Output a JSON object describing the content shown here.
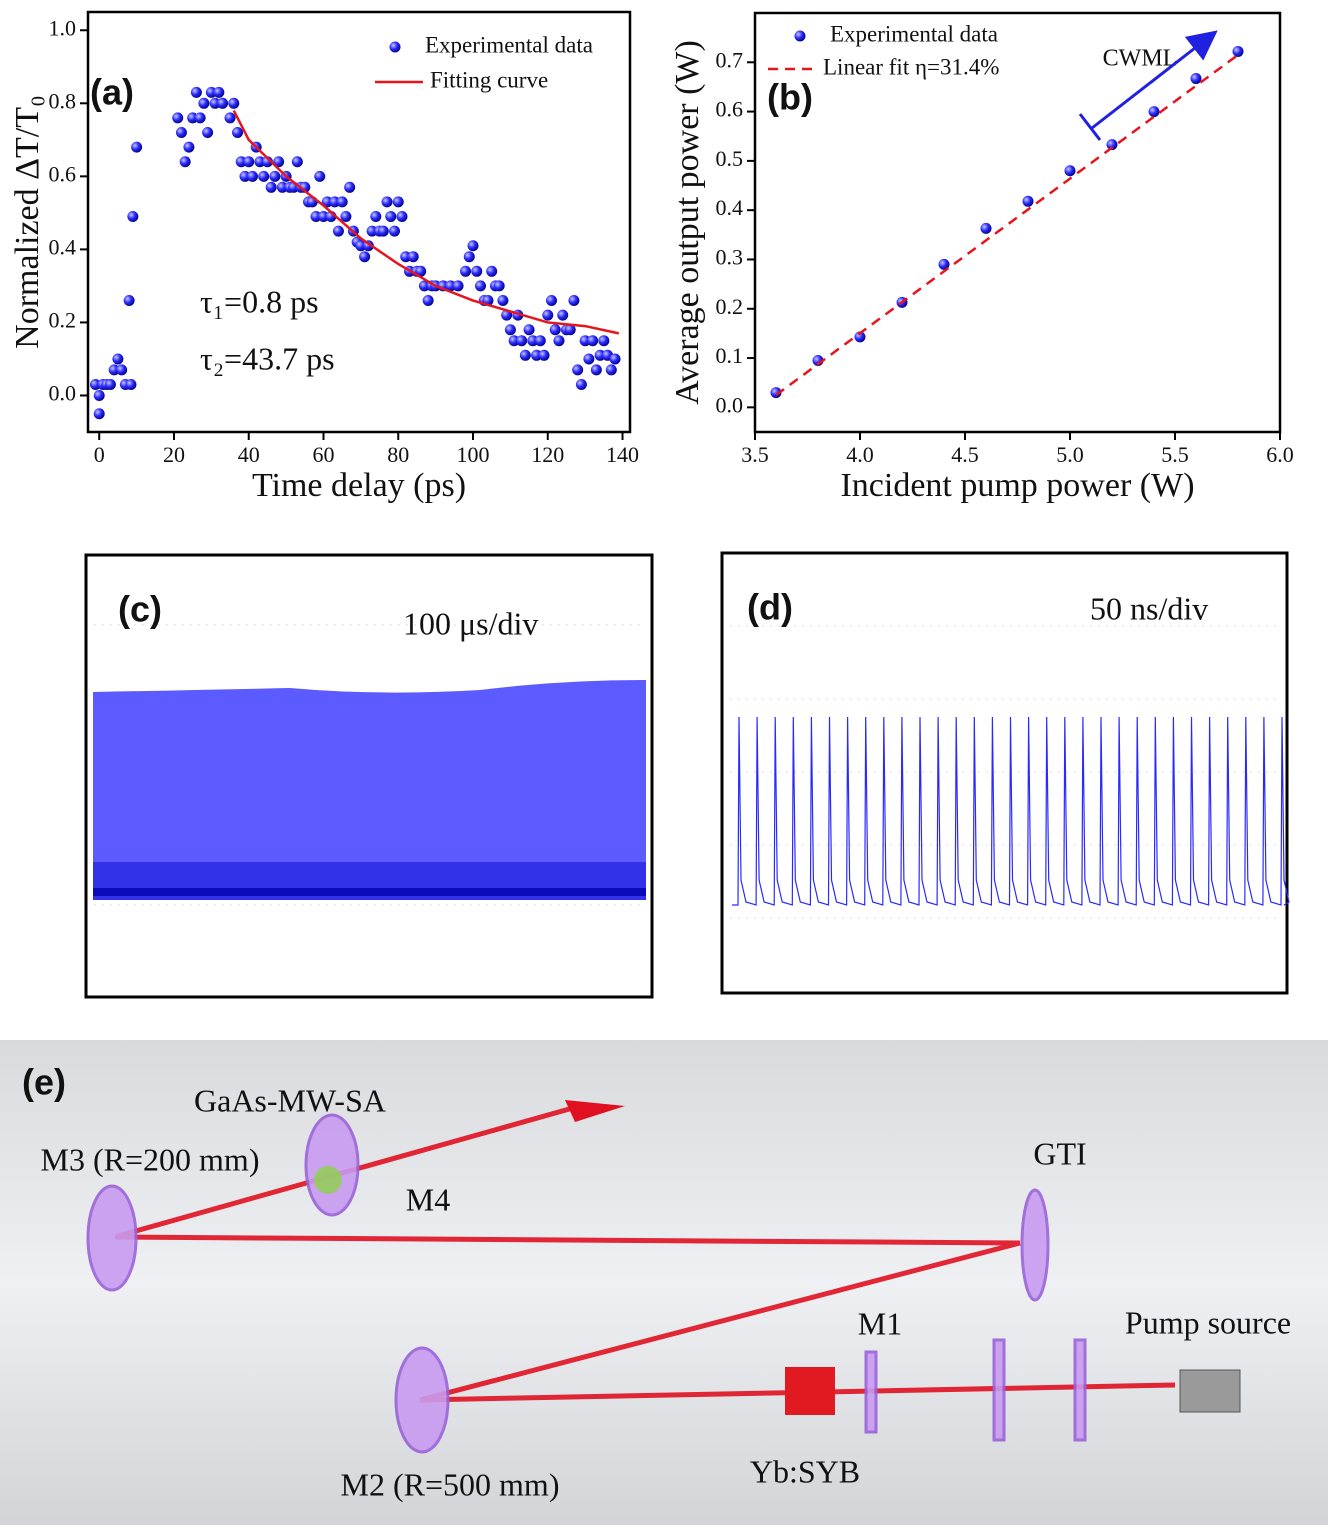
{
  "chart_data": [
    {
      "type": "scatter-fit",
      "panel_label": "(a)",
      "x_label": "Time delay (ps)",
      "y_label": "Normalized ΔT/T₀",
      "annotations": [
        "τ₁=0.8 ps",
        "τ₂=43.7 ps"
      ],
      "xlim": [
        -3,
        142
      ],
      "ylim": [
        -0.1,
        1.05
      ],
      "xticks": [
        0,
        20,
        40,
        60,
        80,
        100,
        120,
        140
      ],
      "yticks": [
        {
          "value": 0,
          "label": "0.0"
        },
        0.2,
        0.4,
        0.6,
        0.8,
        {
          "value": 1,
          "label": "1.0"
        }
      ],
      "series": [
        {
          "name": "Experimental data",
          "type": "scatter",
          "color": "#1a1aff",
          "x": [
            -1,
            0,
            0,
            1,
            2,
            3,
            4,
            5,
            6,
            7,
            8,
            8.5,
            9,
            10,
            21,
            22,
            23,
            24,
            25,
            26,
            27,
            28,
            29,
            30,
            31,
            32,
            33,
            35,
            36,
            37,
            38,
            39,
            40,
            41,
            42,
            43,
            44,
            45,
            46,
            47,
            48,
            49,
            50,
            51,
            52,
            53,
            54,
            55,
            56,
            57,
            58,
            59,
            60,
            61,
            62,
            63,
            64,
            65,
            66,
            67,
            68,
            69,
            70,
            71,
            72,
            73,
            74,
            75,
            76,
            77,
            78,
            79,
            80,
            81,
            82,
            83,
            84,
            85,
            86,
            87,
            88,
            89,
            90,
            92,
            94,
            96,
            98,
            99,
            100,
            101,
            102,
            103,
            104,
            105,
            106,
            107,
            108,
            109,
            110,
            111,
            112,
            113,
            114,
            115,
            116,
            117,
            118,
            119,
            120,
            121,
            122,
            123,
            124,
            125,
            126,
            127,
            128,
            129,
            130,
            131,
            132,
            133,
            134,
            135,
            136,
            137,
            138
          ],
          "values": [
            0.03,
            0,
            -0.05,
            0.03,
            0.03,
            0.03,
            0.07,
            0.1,
            0.07,
            0.03,
            0.26,
            0.03,
            0.49,
            0.68,
            0.76,
            0.72,
            0.64,
            0.68,
            0.76,
            0.83,
            0.76,
            0.8,
            0.72,
            0.83,
            0.8,
            0.83,
            0.8,
            0.76,
            0.8,
            0.72,
            0.64,
            0.6,
            0.64,
            0.6,
            0.68,
            0.64,
            0.6,
            0.64,
            0.57,
            0.6,
            0.64,
            0.57,
            0.6,
            0.57,
            0.57,
            0.64,
            0.57,
            0.57,
            0.53,
            0.53,
            0.49,
            0.6,
            0.49,
            0.53,
            0.49,
            0.53,
            0.45,
            0.53,
            0.49,
            0.57,
            0.45,
            0.42,
            0.41,
            0.38,
            0.41,
            0.45,
            0.49,
            0.45,
            0.45,
            0.53,
            0.49,
            0.45,
            0.53,
            0.49,
            0.38,
            0.34,
            0.38,
            0.34,
            0.34,
            0.3,
            0.26,
            0.3,
            0.3,
            0.3,
            0.3,
            0.3,
            0.34,
            0.38,
            0.41,
            0.34,
            0.3,
            0.26,
            0.26,
            0.34,
            0.3,
            0.3,
            0.26,
            0.22,
            0.18,
            0.15,
            0.22,
            0.15,
            0.11,
            0.18,
            0.15,
            0.11,
            0.15,
            0.11,
            0.22,
            0.26,
            0.18,
            0.15,
            0.22,
            0.18,
            0.18,
            0.26,
            0.07,
            0.03,
            0.15,
            0.1,
            0.15,
            0.07,
            0.11,
            0.15,
            0.11,
            0.07,
            0.1
          ]
        },
        {
          "name": "Fitting curve",
          "type": "line",
          "color": "#e8141c",
          "x": [
            36,
            40,
            50,
            60,
            70,
            80,
            90,
            100,
            110,
            120,
            130,
            139
          ],
          "values": [
            0.78,
            0.7,
            0.6,
            0.52,
            0.43,
            0.36,
            0.3,
            0.26,
            0.23,
            0.2,
            0.19,
            0.17
          ]
        }
      ]
    },
    {
      "type": "scatter-fit",
      "panel_label": "(b)",
      "x_label": "Incident pump power (W)",
      "y_label": "Average output power (W)",
      "annotations": [
        "CWML"
      ],
      "xlim": [
        3.5,
        6.0
      ],
      "ylim": [
        -0.05,
        0.8
      ],
      "xticks": [
        3.5,
        {
          "value": 4,
          "label": "4.0"
        },
        4.5,
        {
          "value": 5,
          "label": "5.0"
        },
        5.5,
        {
          "value": 6,
          "label": "6.0"
        }
      ],
      "yticks": [
        {
          "value": 0,
          "label": "0.0"
        },
        0.1,
        0.2,
        0.3,
        0.4,
        0.5,
        0.6,
        0.7
      ],
      "series": [
        {
          "name": "Experimental data",
          "type": "scatter",
          "color": "#1a1aff",
          "x": [
            3.6,
            3.8,
            4.0,
            4.2,
            4.4,
            4.6,
            4.8,
            5.0,
            5.2,
            5.4,
            5.6,
            5.8
          ],
          "values": [
            0.03,
            0.095,
            0.143,
            0.213,
            0.29,
            0.363,
            0.418,
            0.48,
            0.533,
            0.6,
            0.667,
            0.722
          ]
        },
        {
          "name": "Linear fit η=31.4%",
          "type": "line",
          "dash": true,
          "color": "#e8141c",
          "x": [
            3.6,
            5.8
          ],
          "values": [
            0.025,
            0.715
          ]
        }
      ]
    },
    {
      "type": "oscilloscope",
      "panel_label": "(c)",
      "annotation": "100 μs/div",
      "color": "#5b5bff"
    },
    {
      "type": "oscilloscope-pulses",
      "panel_label": "(d)",
      "annotation": "50 ns/div",
      "color": "#2a2aff"
    }
  ],
  "diagram": {
    "panel_label": "(e)",
    "labels": [
      "GaAs-MW-SA",
      "M3 (R=200 mm)",
      "M4",
      "GTI",
      "M1",
      "Pump source",
      "M2 (R=500 mm)",
      "Yb:SYB"
    ]
  }
}
